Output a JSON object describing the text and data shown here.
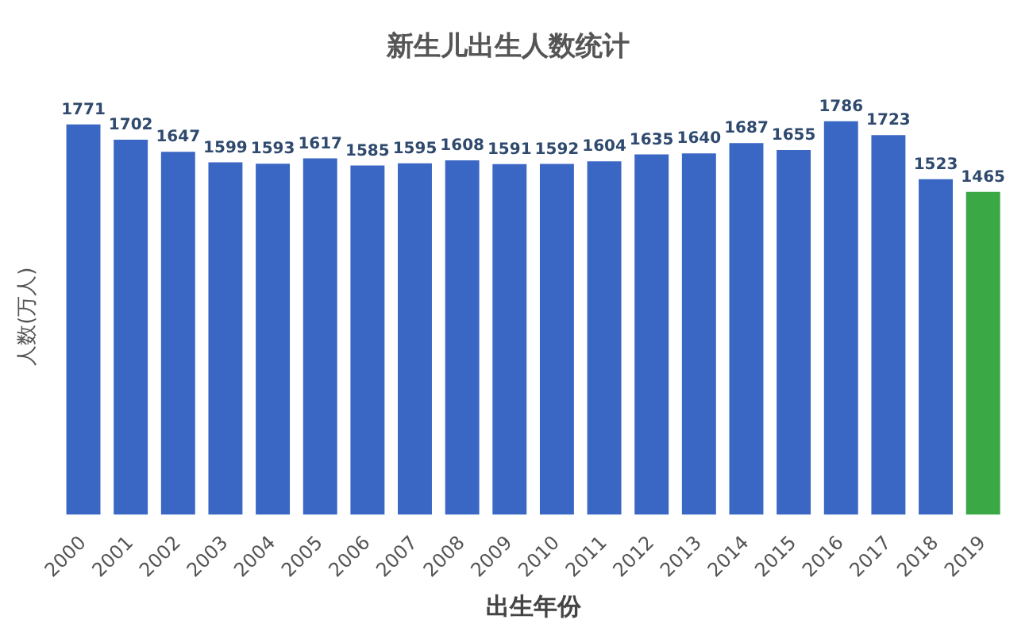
{
  "chart_data": {
    "type": "bar",
    "title": "新生儿出生人数统计",
    "xlabel": "出生年份",
    "ylabel": "人数(万人)",
    "categories": [
      "2000",
      "2001",
      "2002",
      "2003",
      "2004",
      "2005",
      "2006",
      "2007",
      "2008",
      "2009",
      "2010",
      "2011",
      "2012",
      "2013",
      "2014",
      "2015",
      "2016",
      "2017",
      "2018",
      "2019"
    ],
    "values": [
      1771,
      1702,
      1647,
      1599,
      1593,
      1617,
      1585,
      1595,
      1608,
      1591,
      1592,
      1604,
      1635,
      1640,
      1687,
      1655,
      1786,
      1723,
      1523,
      1465
    ],
    "colors": [
      "#3a67c4",
      "#3a67c4",
      "#3a67c4",
      "#3a67c4",
      "#3a67c4",
      "#3a67c4",
      "#3a67c4",
      "#3a67c4",
      "#3a67c4",
      "#3a67c4",
      "#3a67c4",
      "#3a67c4",
      "#3a67c4",
      "#3a67c4",
      "#3a67c4",
      "#3a67c4",
      "#3a67c4",
      "#3a67c4",
      "#3a67c4",
      "#3aa845"
    ],
    "data_labels": true
  }
}
